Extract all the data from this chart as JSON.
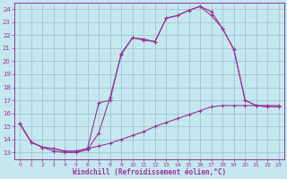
{
  "xlabel": "Windchill (Refroidissement éolien,°C)",
  "xlim": [
    -0.5,
    23.5
  ],
  "ylim": [
    12.5,
    24.5
  ],
  "yticks": [
    13,
    14,
    15,
    16,
    17,
    18,
    19,
    20,
    21,
    22,
    23,
    24
  ],
  "xticks": [
    0,
    1,
    2,
    3,
    4,
    5,
    6,
    7,
    8,
    9,
    10,
    11,
    12,
    13,
    14,
    15,
    16,
    17,
    18,
    19,
    20,
    21,
    22,
    23
  ],
  "bg_color": "#c5e8f0",
  "line_color": "#993399",
  "grid_color": "#9bbfcc",
  "line1_x": [
    0,
    1,
    2,
    3,
    4,
    5,
    6,
    7,
    8,
    9,
    10,
    11,
    12,
    13,
    14,
    15,
    16,
    17,
    18,
    19,
    20,
    21,
    22,
    23
  ],
  "line1_y": [
    15.2,
    13.8,
    13.4,
    13.1,
    13.0,
    13.0,
    13.2,
    14.5,
    17.2,
    20.5,
    21.8,
    21.6,
    21.5,
    23.3,
    23.5,
    23.9,
    24.2,
    23.8,
    22.5,
    20.9,
    17.0,
    16.6,
    16.5,
    16.5
  ],
  "line2_x": [
    0,
    1,
    2,
    3,
    4,
    5,
    6,
    7,
    8,
    9,
    10,
    11,
    12,
    13,
    14,
    15,
    16,
    17,
    18,
    19,
    20,
    21,
    22,
    23
  ],
  "line2_y": [
    15.2,
    13.8,
    13.4,
    13.3,
    13.1,
    13.1,
    13.3,
    16.8,
    17.0,
    20.6,
    21.8,
    21.7,
    21.5,
    23.3,
    23.5,
    23.9,
    24.2,
    23.5,
    22.5,
    20.9,
    17.0,
    16.6,
    16.5,
    16.5
  ],
  "line3_x": [
    0,
    1,
    2,
    3,
    4,
    5,
    6,
    7,
    8,
    9,
    10,
    11,
    12,
    13,
    14,
    15,
    16,
    17,
    18,
    19,
    20,
    21,
    22,
    23
  ],
  "line3_y": [
    15.2,
    13.8,
    13.4,
    13.3,
    13.1,
    13.1,
    13.3,
    13.5,
    13.7,
    14.0,
    14.3,
    14.6,
    15.0,
    15.3,
    15.6,
    15.9,
    16.2,
    16.5,
    16.6,
    16.6,
    16.6,
    16.6,
    16.6,
    16.6
  ]
}
